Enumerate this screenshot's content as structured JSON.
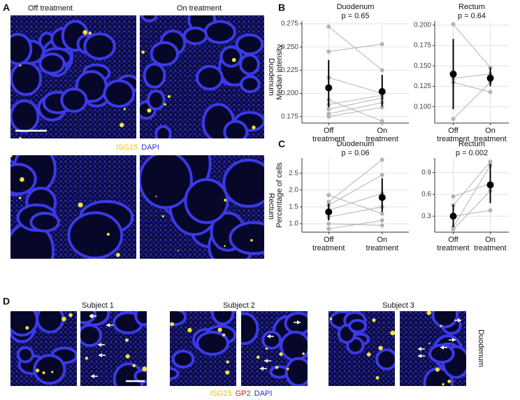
{
  "panel_labels": [
    "A",
    "B",
    "C",
    "D"
  ],
  "figure_a": {
    "columns": [
      "Off treatment",
      "On treatment"
    ],
    "rows": [
      "Duodenum",
      "Rectum"
    ],
    "stains": [
      {
        "name": "ISG15",
        "color": "#e0c21a"
      },
      {
        "name": "DAPI",
        "color": "#2b2bd6"
      }
    ]
  },
  "figure_d": {
    "subjects": [
      "Subject 1",
      "Subject 2",
      "Subject 3"
    ],
    "row": "Duodenum",
    "stains": [
      {
        "name": "ISG15",
        "color": "#e0c21a"
      },
      {
        "name": "GP2",
        "color": "#d62020"
      },
      {
        "name": "DAPI",
        "color": "#2b2bd6"
      }
    ]
  },
  "chart_data": [
    {
      "type": "slope",
      "title": "Duodenum",
      "subtitle": "p = 0.65",
      "y_label": "Median intensity",
      "categories": [
        "Off treatment",
        "On treatment"
      ],
      "color": "#b3b3b3",
      "mean_color": "#000000",
      "series": [
        {
          "values": [
            0.272,
            0.225
          ]
        },
        {
          "values": [
            0.245,
            0.253
          ]
        },
        {
          "values": [
            0.217,
            0.2
          ]
        },
        {
          "values": [
            0.193,
            0.17
          ]
        },
        {
          "values": [
            0.188,
            0.198
          ]
        },
        {
          "values": [
            0.183,
            0.195
          ]
        },
        {
          "values": [
            0.178,
            0.19
          ]
        },
        {
          "values": [
            0.175,
            0.185
          ]
        }
      ],
      "mean": {
        "values": [
          0.206,
          0.202
        ],
        "lower": [
          0.185,
          0.186
        ],
        "upper": [
          0.236,
          0.22
        ]
      },
      "ylim": [
        0.168,
        0.278
      ],
      "yticks": [
        0.175,
        {
          "value": 0.2,
          "label": "0.200"
        },
        0.225,
        {
          "value": 0.25,
          "label": "0.250"
        },
        0.275
      ],
      "grid": true
    },
    {
      "type": "slope",
      "title": "Rectum",
      "subtitle": "p = 0.64",
      "categories": [
        "Off treatment",
        "On treatment"
      ],
      "color": "#b3b3b3",
      "mean_color": "#000000",
      "series": [
        {
          "values": [
            0.201,
            0.148
          ]
        },
        {
          "values": [
            0.135,
            0.14
          ]
        },
        {
          "values": [
            0.13,
            0.118
          ]
        },
        {
          "values": [
            0.085,
            0.13
          ]
        }
      ],
      "mean": {
        "values": [
          0.14,
          0.135
        ],
        "lower": [
          0.097,
          0.125
        ],
        "upper": [
          0.183,
          0.148
        ]
      },
      "ylim": [
        0.08,
        0.205
      ],
      "yticks": [
        {
          "value": 0.1,
          "label": "0.100"
        },
        0.125,
        {
          "value": 0.15,
          "label": "0.150"
        },
        0.175,
        {
          "value": 0.2,
          "label": "0.200"
        }
      ],
      "grid": true
    },
    {
      "type": "slope",
      "title": "Duodenum",
      "subtitle": "p = 0.06",
      "y_label": "Percentage of cells",
      "categories": [
        "Off treatment",
        "On treatment"
      ],
      "color": "#b3b3b3",
      "mean_color": "#000000",
      "series": [
        {
          "values": [
            1.85,
            1.3
          ]
        },
        {
          "values": [
            1.65,
            2.9
          ]
        },
        {
          "values": [
            1.55,
            2.45
          ]
        },
        {
          "values": [
            1.4,
            1.9
          ]
        },
        {
          "values": [
            1.2,
            1.5
          ]
        },
        {
          "values": [
            1.0,
            0.95
          ]
        },
        {
          "values": [
            0.85,
            1.1
          ]
        }
      ],
      "mean": {
        "values": [
          1.35,
          1.78
        ],
        "lower": [
          1.1,
          1.35
        ],
        "upper": [
          1.6,
          2.35
        ]
      },
      "ylim": [
        0.75,
        2.95
      ],
      "yticks": [
        {
          "value": 1,
          "label": "1.0"
        },
        1.5,
        {
          "value": 2,
          "label": "2.0"
        },
        2.5
      ],
      "grid": true
    },
    {
      "type": "slope",
      "title": "Rectum",
      "subtitle": "p = 0.002",
      "categories": [
        "Off treatment",
        "On treatment"
      ],
      "color": "#b3b3b3",
      "mean_color": "#000000",
      "series": [
        {
          "values": [
            0.57,
            0.75
          ]
        },
        {
          "values": [
            0.45,
            1.05
          ]
        },
        {
          "values": [
            0.3,
            0.38
          ]
        },
        {
          "values": [
            0.15,
            1.0
          ]
        },
        {
          "values": [
            0.12,
            0.65
          ]
        }
      ],
      "mean": {
        "values": [
          0.3,
          0.73
        ],
        "lower": [
          0.15,
          0.48
        ],
        "upper": [
          0.46,
          1.02
        ]
      },
      "ylim": [
        0.08,
        1.1
      ],
      "yticks": [
        0.3,
        0.6,
        0.9
      ],
      "grid": true
    }
  ]
}
